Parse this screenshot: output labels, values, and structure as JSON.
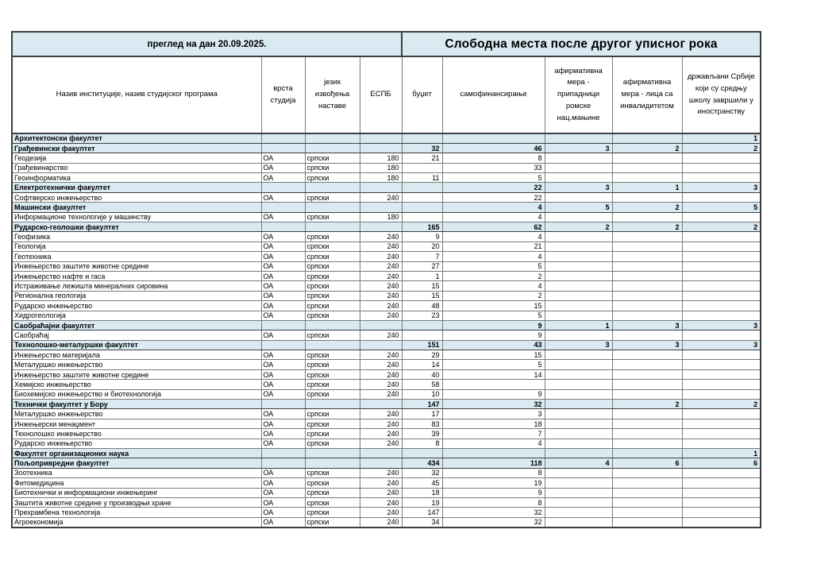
{
  "table": {
    "left_header": "преглед на дан 20.09.2025.",
    "right_header": "Слободна места после другог уписног рока",
    "columns": [
      "Назив институције, назив студијског програма",
      "врста студија",
      "језик извођења наставе",
      "ЕСПБ",
      "буџет",
      "самофинансирање",
      "афирмативна мера - припадници ромске нац.мањине",
      "афирмативна мера - лица са инвалидитетом",
      "држављани Србије који су средњу школу завршили у иностранству"
    ],
    "colors": {
      "header_fill": "#d9eaf2",
      "border_thin": "#7b7b7b",
      "border_medium": "#3f3f3f"
    },
    "rows": [
      {
        "type": "section",
        "name": "Архитектонски факултет",
        "drz": "1"
      },
      {
        "type": "section",
        "name": "Грађевински факултет",
        "budzet": "32",
        "samo": "46",
        "rom": "3",
        "inv": "2",
        "drz": "2"
      },
      {
        "type": "program",
        "name": "Геодезија",
        "vrsta": "ОА",
        "jezik": "српски",
        "espb": "180",
        "budzet": "21",
        "samo": "8"
      },
      {
        "type": "program",
        "name": "Грађевинарство",
        "vrsta": "ОА",
        "jezik": "српски",
        "espb": "180",
        "samo": "33"
      },
      {
        "type": "program",
        "name": "Геоинформатика",
        "vrsta": "ОА",
        "jezik": "српски",
        "espb": "180",
        "budzet": "11",
        "samo": "5"
      },
      {
        "type": "section",
        "name": "Електротехнички факултет",
        "samo": "22",
        "rom": "3",
        "inv": "1",
        "drz": "3"
      },
      {
        "type": "program",
        "name": "Софтверско инжењерство",
        "vrsta": "ОА",
        "jezik": "српски",
        "espb": "240",
        "samo": "22"
      },
      {
        "type": "section",
        "name": "Машински факултет",
        "samo": "4",
        "rom": "5",
        "inv": "2",
        "drz": "5"
      },
      {
        "type": "program",
        "name": "Информационе технологије у машинству",
        "vrsta": "ОА",
        "jezik": "српски",
        "espb": "180",
        "samo": "4"
      },
      {
        "type": "section",
        "name": "Рударско-геолошки факултет",
        "budzet": "165",
        "samo": "62",
        "rom": "2",
        "inv": "2",
        "drz": "2"
      },
      {
        "type": "program",
        "name": "Геофизика",
        "vrsta": "ОА",
        "jezik": "српски",
        "espb": "240",
        "budzet": "9",
        "samo": "4"
      },
      {
        "type": "program",
        "name": "Геологија",
        "vrsta": "ОА",
        "jezik": "српски",
        "espb": "240",
        "budzet": "20",
        "samo": "21"
      },
      {
        "type": "program",
        "name": "Геотехника",
        "vrsta": "ОА",
        "jezik": "српски",
        "espb": "240",
        "budzet": "7",
        "samo": "4"
      },
      {
        "type": "program",
        "name": "Инжењерство заштите животне средине",
        "vrsta": "ОА",
        "jezik": "српски",
        "espb": "240",
        "budzet": "27",
        "samo": "5"
      },
      {
        "type": "program",
        "name": "Инжењерство нафте и гаса",
        "vrsta": "ОА",
        "jezik": "српски",
        "espb": "240",
        "budzet": "1",
        "samo": "2"
      },
      {
        "type": "program",
        "name": "Истраживање лежишта минералних сировина",
        "vrsta": "ОА",
        "jezik": "српски",
        "espb": "240",
        "budzet": "15",
        "samo": "4"
      },
      {
        "type": "program",
        "name": "Регионална геологија",
        "vrsta": "ОА",
        "jezik": "српски",
        "espb": "240",
        "budzet": "15",
        "samo": "2"
      },
      {
        "type": "program",
        "name": "Рударско инжењерство",
        "vrsta": "ОА",
        "jezik": "српски",
        "espb": "240",
        "budzet": "48",
        "samo": "15"
      },
      {
        "type": "program",
        "name": "Хидрогеологија",
        "vrsta": "ОА",
        "jezik": "српски",
        "espb": "240",
        "budzet": "23",
        "samo": "5"
      },
      {
        "type": "section",
        "name": "Саобраћајни факултет",
        "samo": "9",
        "rom": "1",
        "inv": "3",
        "drz": "3"
      },
      {
        "type": "program",
        "name": "Саобраћај",
        "vrsta": "ОА",
        "jezik": "српски",
        "espb": "240",
        "samo": "9"
      },
      {
        "type": "section",
        "name": "Технолошко-металуршки факултет",
        "budzet": "151",
        "samo": "43",
        "rom": "3",
        "inv": "3",
        "drz": "3"
      },
      {
        "type": "program",
        "name": "Инжењерство материјала",
        "vrsta": "ОА",
        "jezik": "српски",
        "espb": "240",
        "budzet": "29",
        "samo": "15"
      },
      {
        "type": "program",
        "name": "Металуршко инжењерство",
        "vrsta": "ОА",
        "jezik": "српски",
        "espb": "240",
        "budzet": "14",
        "samo": "5"
      },
      {
        "type": "program",
        "name": "Инжењерство заштите животне средине",
        "vrsta": "ОА",
        "jezik": "српски",
        "espb": "240",
        "budzet": "40",
        "samo": "14"
      },
      {
        "type": "program",
        "name": "Хемијско инжењерство",
        "vrsta": "ОА",
        "jezik": "српски",
        "espb": "240",
        "budzet": "58"
      },
      {
        "type": "program",
        "name": "Биохемијско инжењерство и биотехнологија",
        "vrsta": "ОА",
        "jezik": "српски",
        "espb": "240",
        "budzet": "10",
        "samo": "9"
      },
      {
        "type": "section",
        "name": "Технички факултет у Бору",
        "budzet": "147",
        "samo": "32",
        "inv": "2",
        "drz": "2"
      },
      {
        "type": "program",
        "name": "Металуршко инжењерство",
        "vrsta": "ОА",
        "jezik": "српски",
        "espb": "240",
        "budzet": "17",
        "samo": "3"
      },
      {
        "type": "program",
        "name": "Инжењерски менаџмент",
        "vrsta": "ОА",
        "jezik": "српски",
        "espb": "240",
        "budzet": "83",
        "samo": "18"
      },
      {
        "type": "program",
        "name": "Технолошко инжењерство",
        "vrsta": "ОА",
        "jezik": "српски",
        "espb": "240",
        "budzet": "39",
        "samo": "7"
      },
      {
        "type": "program",
        "name": "Рударско инжењерство",
        "vrsta": "ОА",
        "jezik": "српски",
        "espb": "240",
        "budzet": "8",
        "samo": "4"
      },
      {
        "type": "section",
        "name": "Факултет организационих наука",
        "drz": "1"
      },
      {
        "type": "section",
        "name": "Пољопривредни факултет",
        "budzet": "434",
        "samo": "118",
        "rom": "4",
        "inv": "6",
        "drz": "6"
      },
      {
        "type": "program",
        "name": "Зоотехника",
        "vrsta": "ОА",
        "jezik": "српски",
        "espb": "240",
        "budzet": "32",
        "samo": "8"
      },
      {
        "type": "program",
        "name": "Фитомедицина",
        "vrsta": "ОА",
        "jezik": "српски",
        "espb": "240",
        "budzet": "45",
        "samo": "19"
      },
      {
        "type": "program",
        "name": "Биотехнички и информациони инжењеринг",
        "vrsta": "ОА",
        "jezik": "српски",
        "espb": "240",
        "budzet": "18",
        "samo": "9"
      },
      {
        "type": "program",
        "name": "Заштита животне средине у производњи хране",
        "vrsta": "ОА",
        "jezik": "српски",
        "espb": "240",
        "budzet": "19",
        "samo": "8"
      },
      {
        "type": "program",
        "name": "Прехрамбена технологија",
        "vrsta": "ОА",
        "jezik": "српски",
        "espb": "240",
        "budzet": "147",
        "samo": "32"
      },
      {
        "type": "program",
        "name": "Агроекономија",
        "vrsta": "ОА",
        "jezik": "српски",
        "espb": "240",
        "budzet": "34",
        "samo": "32"
      }
    ]
  }
}
